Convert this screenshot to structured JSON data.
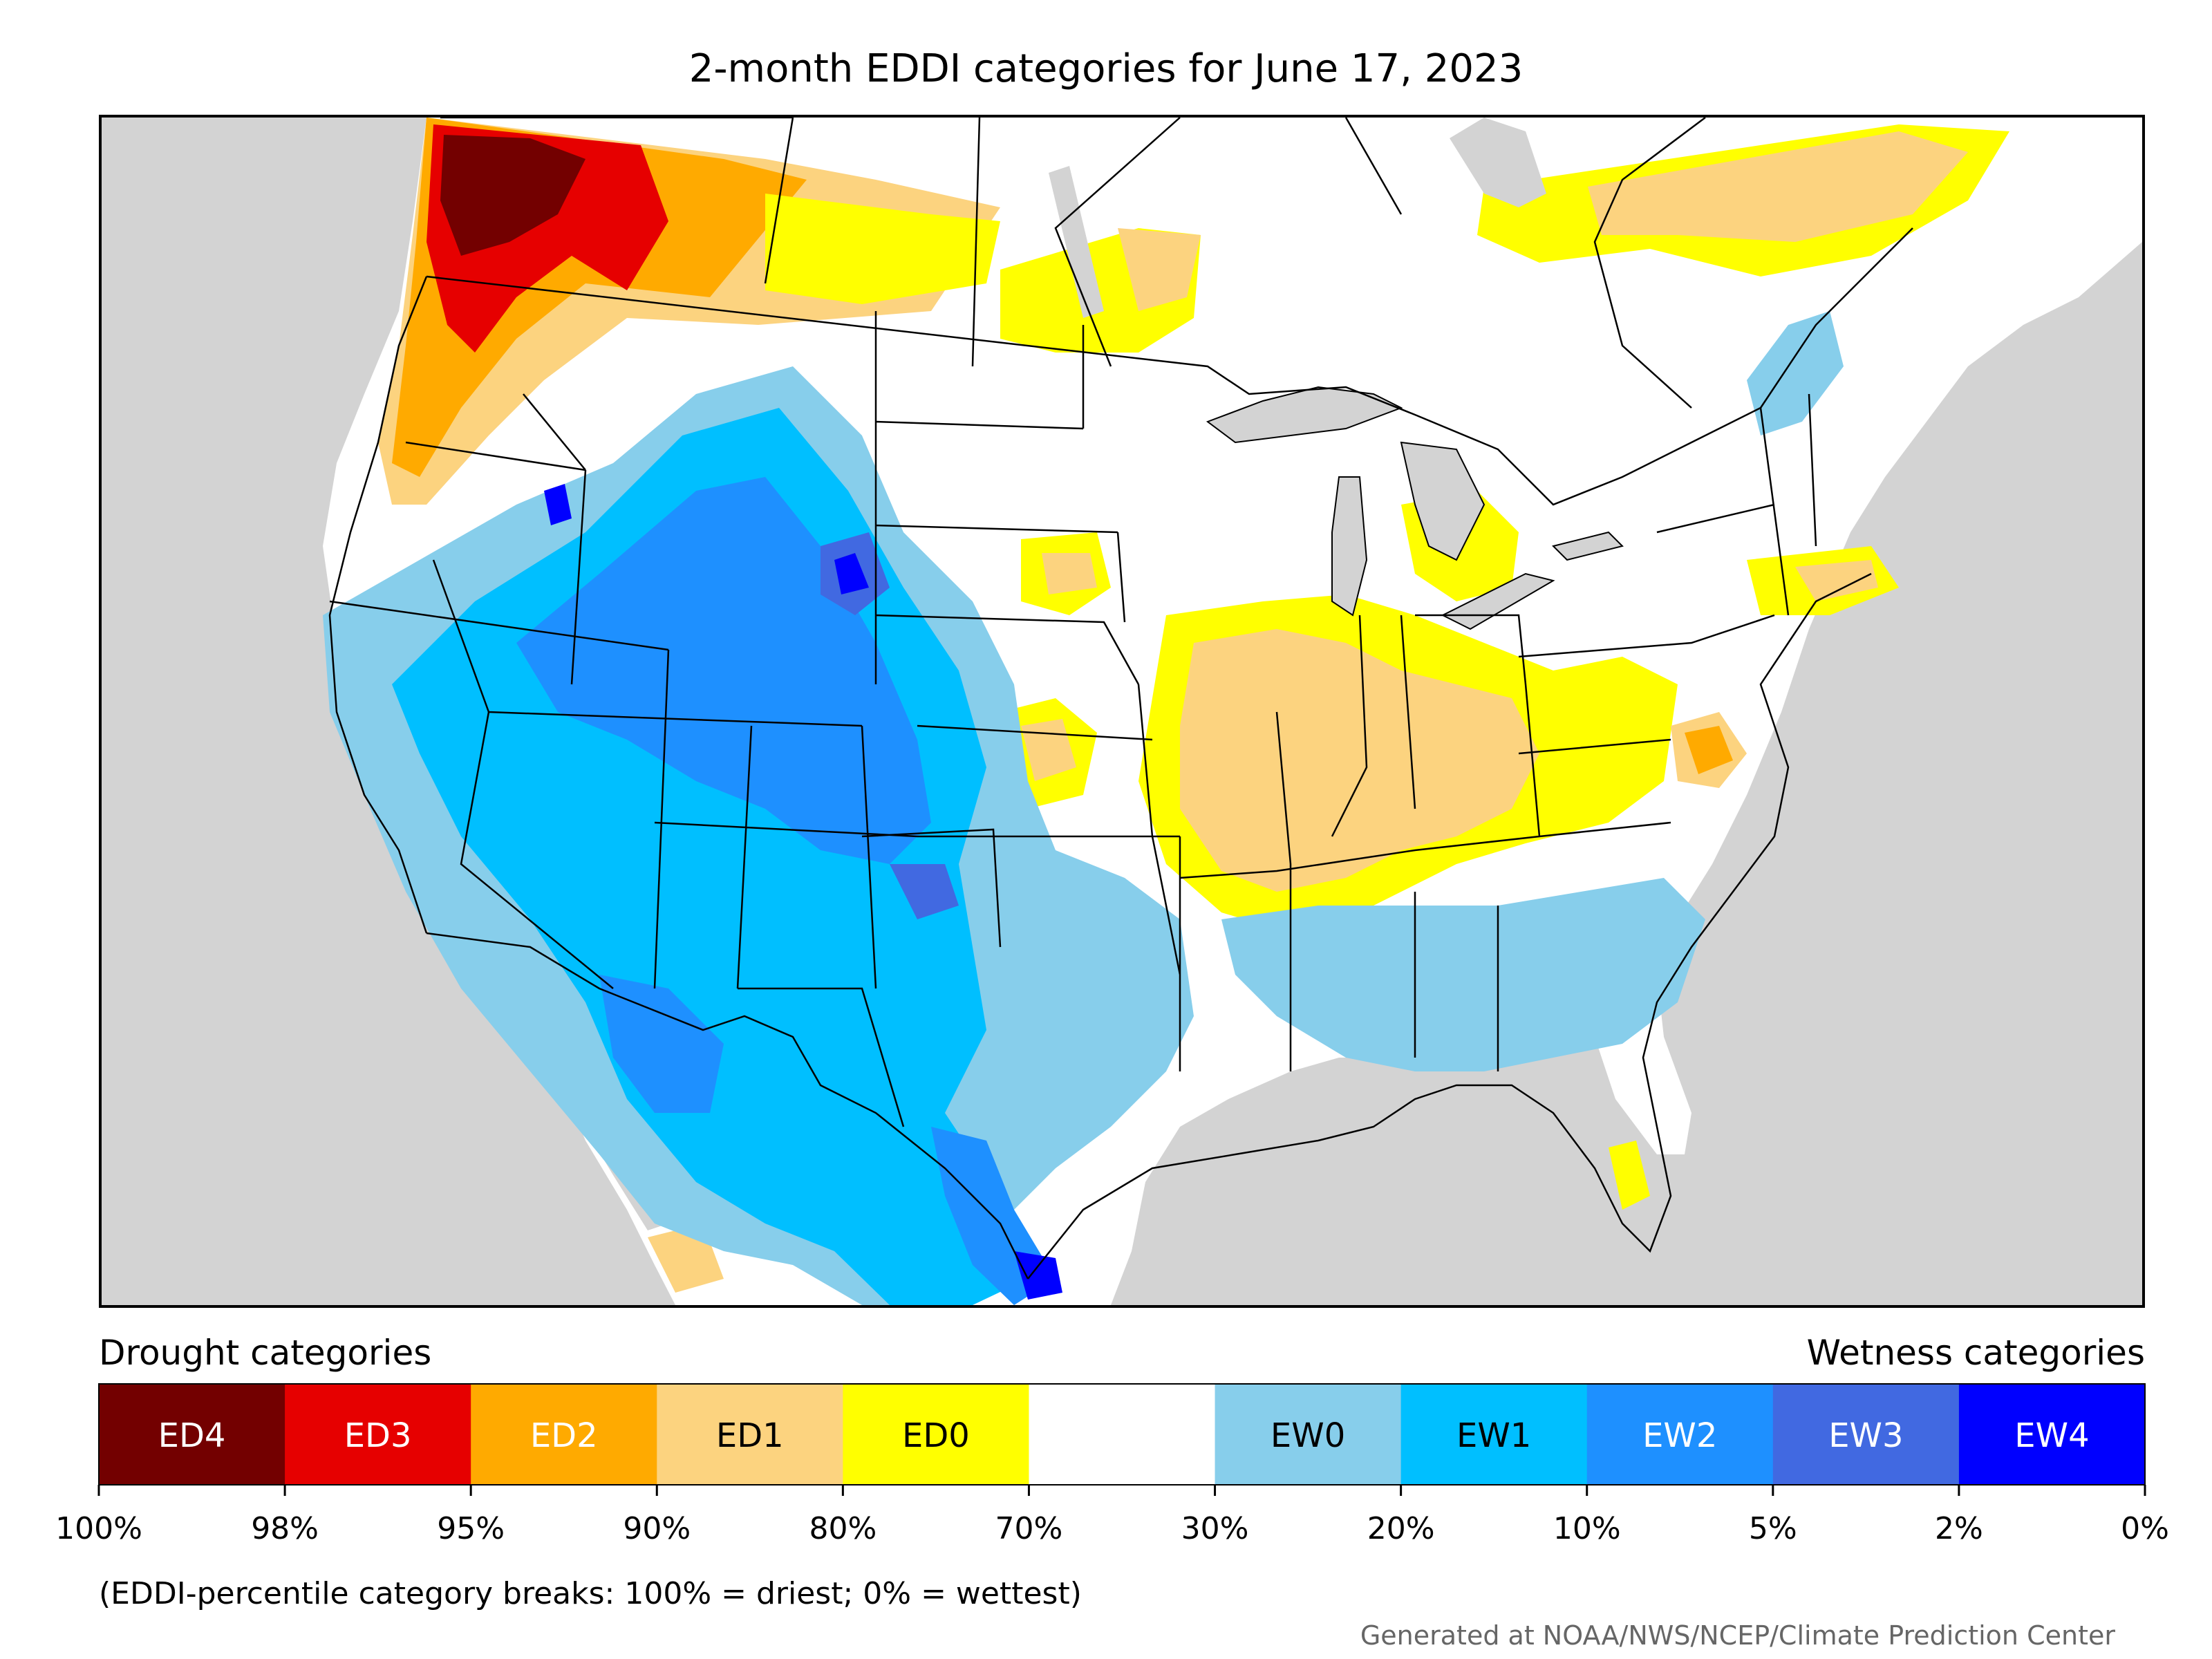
{
  "title": "2-month EDDI categories for June 17, 2023",
  "legend": {
    "drought_header": "Drought categories",
    "wetness_header": "Wetness categories",
    "categories": [
      {
        "label": "ED4",
        "color": "#730000",
        "text_color": "#ffffff"
      },
      {
        "label": "ED3",
        "color": "#e60000",
        "text_color": "#ffffff"
      },
      {
        "label": "ED2",
        "color": "#ffaa00",
        "text_color": "#ffffff"
      },
      {
        "label": "ED1",
        "color": "#fcd37f",
        "text_color": "#000000"
      },
      {
        "label": "ED0",
        "color": "#ffff00",
        "text_color": "#000000"
      },
      {
        "label": "",
        "color": "#ffffff",
        "text_color": "#000000"
      },
      {
        "label": "EW0",
        "color": "#87ceeb",
        "text_color": "#000000"
      },
      {
        "label": "EW1",
        "color": "#00bfff",
        "text_color": "#000000"
      },
      {
        "label": "EW2",
        "color": "#1e90ff",
        "text_color": "#ffffff"
      },
      {
        "label": "EW3",
        "color": "#4169e1",
        "text_color": "#ffffff"
      },
      {
        "label": "EW4",
        "color": "#0000ff",
        "text_color": "#ffffff"
      }
    ],
    "ticks": [
      "100%",
      "98%",
      "95%",
      "90%",
      "80%",
      "70%",
      "30%",
      "20%",
      "10%",
      "5%",
      "2%",
      "0%"
    ]
  },
  "note": "(EDDI-percentile category breaks: 100% = driest; 0% = wettest)",
  "credit": "Generated at NOAA/NWS/NCEP/Climate Prediction Center"
}
